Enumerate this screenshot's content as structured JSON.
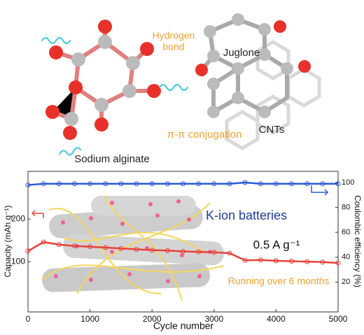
{
  "diagram": {
    "hydrogen_bond": [
      "Hydrogen",
      "bond"
    ],
    "juglone": "Juglone",
    "conjugation": "π-π conjugation",
    "cnts": "CNTs",
    "sodium_alginate": "Sodium alginate"
  },
  "chart_data": {
    "type": "scatter",
    "xlabel": "Cycle number",
    "ylabel": "Capacity (mAh g⁻¹)",
    "y2label": "Coulombic efficiency (%)",
    "annotations": [
      "K-ion batteries",
      "0.5 A g⁻¹",
      "Running over 6 months"
    ],
    "xlim": [
      0,
      5000
    ],
    "xticks": [
      0,
      1000,
      2000,
      3000,
      4000,
      5000
    ],
    "ylim": [
      -18,
      312
    ],
    "yticks": [
      100,
      200
    ],
    "y2lim": [
      -4,
      109
    ],
    "y2ticks": [
      20,
      40,
      60,
      80,
      100
    ],
    "x": [
      0,
      250,
      500,
      750,
      1000,
      1250,
      1500,
      1750,
      2000,
      2250,
      2500,
      2750,
      3000,
      3250,
      3500,
      3750,
      4000,
      4250,
      4500,
      4750,
      5000
    ],
    "series": [
      {
        "name": "Capacity",
        "color": "#e8413a",
        "values": [
          125,
          146,
          140,
          137,
          135,
          133,
          131,
          129,
          127,
          126,
          124,
          123,
          122,
          120,
          103,
          104,
          102,
          101,
          100,
          99,
          97
        ]
      },
      {
        "name": "Coulombic efficiency",
        "color": "#2a5bd7",
        "axis": "y2",
        "values": [
          98,
          99,
          99,
          99,
          99,
          99,
          99,
          99,
          99,
          99,
          99,
          99,
          99,
          99,
          100,
          99,
          99,
          99,
          99,
          99,
          99
        ]
      }
    ]
  }
}
